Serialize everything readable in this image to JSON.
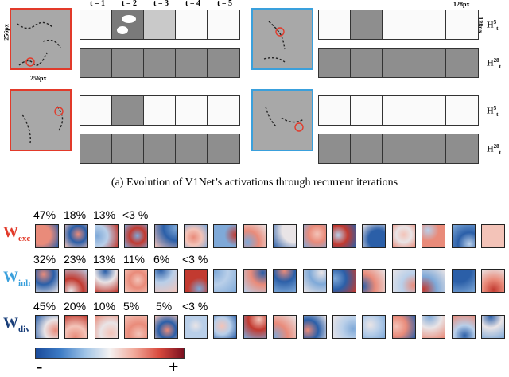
{
  "figure": {
    "caption_a": "(a) Evolution of V1Net’s activations through recurrent iterations",
    "time_labels": [
      "t = 1",
      "t = 2",
      "t = 3",
      "t = 4",
      "t = 5"
    ],
    "size_input_vertical": "256px",
    "size_input_horizontal": "256px",
    "size_frame_horizontal": "128px",
    "size_frame_vertical": "128px",
    "row_labels": {
      "h5": "H",
      "h5_sup": "5",
      "h5_sub": "t",
      "h28": "H",
      "h28_sup": "28",
      "h28_sub": "t"
    }
  },
  "weights": {
    "exc": {
      "label": "W",
      "sub": "exc",
      "color": "#e23a2a",
      "pcts": [
        "47%",
        "18%",
        "13%",
        "<3 %"
      ]
    },
    "inh": {
      "label": "W",
      "sub": "inh",
      "color": "#3aa0dc",
      "pcts": [
        "32%",
        "23%",
        "13%",
        "11%",
        "6%",
        "<3 %"
      ]
    },
    "div": {
      "label": "W",
      "sub": "div",
      "color": "#1a3f7a",
      "pcts": [
        "45%",
        "20%",
        "10%",
        "5%",
        "5%",
        "<3 %"
      ]
    }
  },
  "colorbar": {
    "min_label": "-",
    "max_label": "+"
  },
  "colors": {
    "red": "#e23a2a",
    "blue": "#3aa0dc",
    "navy": "#1a3f7a"
  }
}
